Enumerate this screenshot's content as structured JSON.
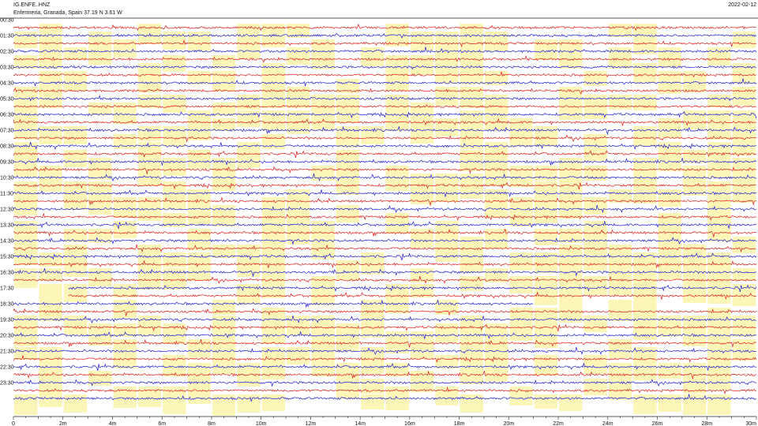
{
  "header": {
    "station": "IG.ENFE..HNZ",
    "location": "Enfermeria, Granada, Spain  37.19 N 3.61 W",
    "date": "2022-02-12"
  },
  "colors": {
    "trace_a": "#e11919",
    "trace_b": "#1b1bd6",
    "highlight": "#fbf6b8",
    "axis": "#222222"
  },
  "chart_data": {
    "type": "line",
    "title": "IG.ENFE..HNZ",
    "subtitle": "Enfermeria, Granada, Spain  37.19 N 3.61 W",
    "date_label": "2022-02-12",
    "xlabel": "",
    "ylabel": "",
    "xlim": [
      0,
      30
    ],
    "x_unit": "m",
    "x_ticks": [
      "0",
      "2m",
      "4m",
      "6m",
      "8m",
      "10m",
      "12m",
      "14m",
      "16m",
      "18m",
      "20m",
      "22m",
      "24m",
      "26m",
      "28m",
      "30m"
    ],
    "lines_per_hour": 2,
    "line_minutes": 30,
    "row_count": 48,
    "row_labels": [
      "00:30",
      "01:30",
      "02:30",
      "03:30",
      "04:30",
      "05:30",
      "06:30",
      "07:30",
      "08:30",
      "09:30",
      "10:30",
      "11:30",
      "12:30",
      "13:30",
      "14:30",
      "15:30",
      "16:30",
      "17:30",
      "18:30",
      "19:30",
      "20:30",
      "21:30",
      "22:30",
      "23:30"
    ],
    "series_colors_alternating": [
      "#e11919",
      "#1b1bd6"
    ],
    "gap": {
      "row": 33,
      "start_min": 0,
      "end_min": 2.2,
      "row2": 34,
      "start2_min": 0,
      "end2_min": 2.2,
      "row3": 35,
      "start3_min": 21,
      "end3_min": 30
    },
    "grid": false,
    "legend": "none"
  }
}
